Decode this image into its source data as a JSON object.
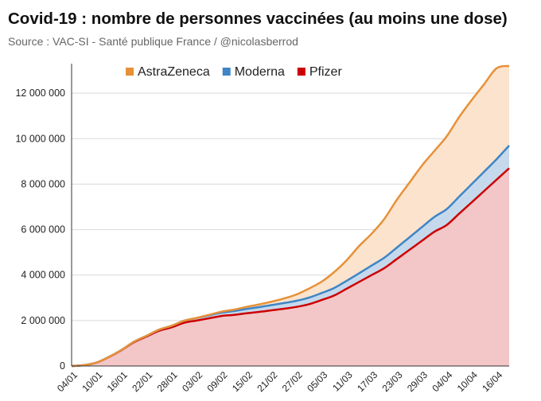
{
  "title": "Covid-19 : nombre de personnes vaccinées (au moins une dose)",
  "subtitle": "Source : VAC-SI - Santé publique France / @nicolasberrod",
  "chart_data": {
    "type": "area",
    "stacked": true,
    "x": [
      "04/01",
      "07/01",
      "10/01",
      "13/01",
      "16/01",
      "19/01",
      "22/01",
      "25/01",
      "28/01",
      "31/01",
      "03/02",
      "06/02",
      "09/02",
      "12/02",
      "15/02",
      "18/02",
      "21/02",
      "24/02",
      "27/02",
      "02/03",
      "05/03",
      "08/03",
      "11/03",
      "14/03",
      "17/03",
      "20/03",
      "23/03",
      "26/03",
      "29/03",
      "01/04",
      "04/04",
      "07/04",
      "10/04",
      "13/04",
      "16/04",
      "19/04"
    ],
    "xtick_labels": [
      "04/01",
      "10/01",
      "16/01",
      "22/01",
      "28/01",
      "03/02",
      "09/02",
      "15/02",
      "21/02",
      "27/02",
      "05/03",
      "11/03",
      "17/03",
      "23/03",
      "29/03",
      "04/04",
      "10/04",
      "16/04"
    ],
    "series": [
      {
        "name": "Pfizer",
        "color": "#cc0000",
        "fill": "#f3c6c8",
        "values": [
          0,
          40000,
          150000,
          400000,
          700000,
          1050000,
          1300000,
          1550000,
          1700000,
          1900000,
          2000000,
          2100000,
          2200000,
          2250000,
          2320000,
          2380000,
          2450000,
          2520000,
          2600000,
          2720000,
          2900000,
          3100000,
          3400000,
          3700000,
          4000000,
          4300000,
          4700000,
          5100000,
          5500000,
          5900000,
          6200000,
          6700000,
          7200000,
          7700000,
          8200000,
          8700000
        ]
      },
      {
        "name": "Moderna",
        "color": "#3d85c6",
        "fill": "#c6d9ec",
        "values": [
          0,
          0,
          0,
          5000,
          10000,
          20000,
          30000,
          50000,
          70000,
          90000,
          110000,
          130000,
          150000,
          170000,
          190000,
          210000,
          230000,
          250000,
          270000,
          290000,
          310000,
          330000,
          350000,
          380000,
          420000,
          460000,
          500000,
          550000,
          600000,
          650000,
          700000,
          750000,
          800000,
          850000,
          900000,
          1000000
        ]
      },
      {
        "name": "AstraZeneca",
        "color": "#e69138",
        "fill": "#fbe3cd",
        "values": [
          0,
          0,
          0,
          0,
          0,
          0,
          0,
          0,
          0,
          0,
          5000,
          20000,
          40000,
          60000,
          90000,
          120000,
          150000,
          200000,
          280000,
          400000,
          500000,
          700000,
          900000,
          1200000,
          1400000,
          1700000,
          2100000,
          2400000,
          2700000,
          2900000,
          3200000,
          3500000,
          3700000,
          3850000,
          4000000,
          3500000
        ]
      }
    ],
    "ylim": [
      0,
      13300000
    ],
    "yticks": [
      0,
      2000000,
      4000000,
      6000000,
      8000000,
      10000000,
      12000000
    ],
    "ytick_labels": [
      "0",
      "2 000 000",
      "4 000 000",
      "6 000 000",
      "8 000 000",
      "10 000 000",
      "12 000 000"
    ],
    "grid": true,
    "legend_position": "top-center",
    "legend_order": [
      "AstraZeneca",
      "Moderna",
      "Pfizer"
    ]
  }
}
